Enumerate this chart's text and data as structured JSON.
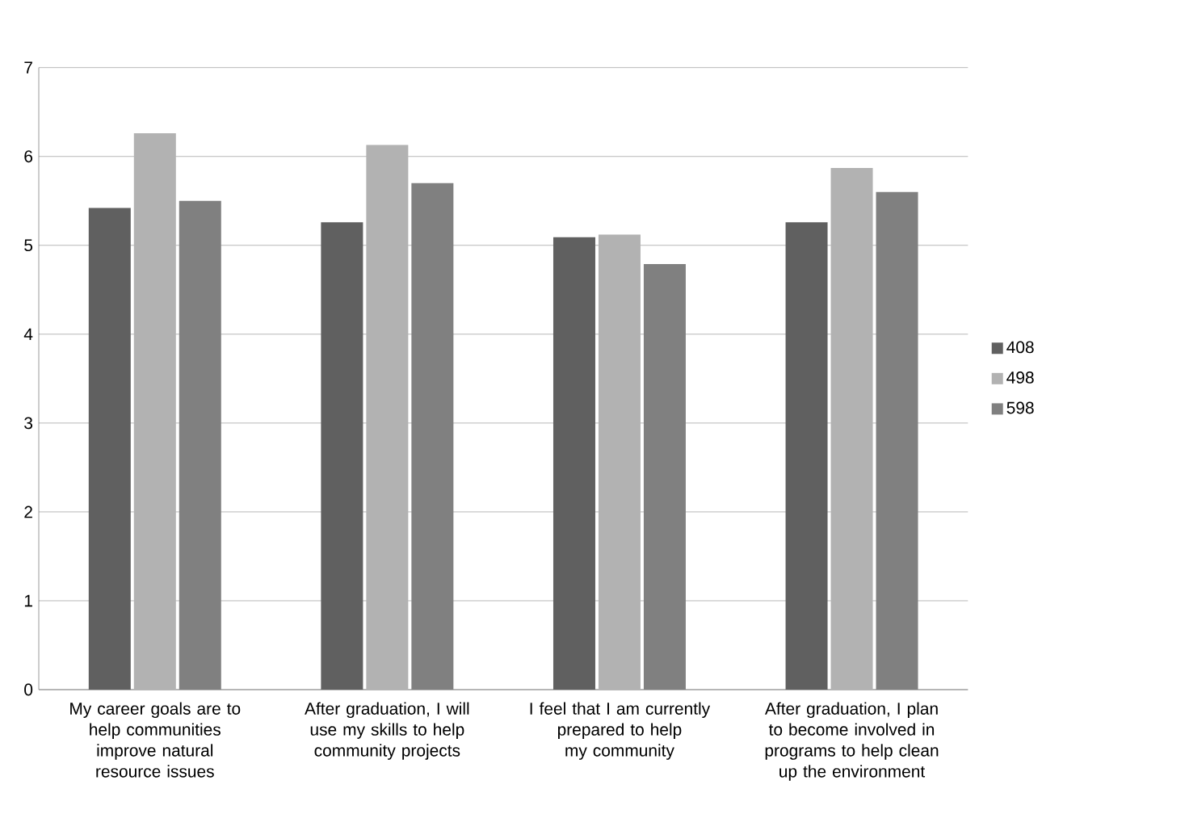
{
  "chart_data": {
    "type": "bar",
    "categories": [
      "My career goals are to help communities improve natural resource issues",
      "After graduation, I will use my skills to help community projects",
      "I feel that I am currently prepared to help my community",
      "After graduation, I plan to become involved in programs to help clean up the environment"
    ],
    "series": [
      {
        "name": "408",
        "color": "#606060",
        "values": [
          5.42,
          5.26,
          5.09,
          5.26
        ]
      },
      {
        "name": "498",
        "color": "#b2b2b2",
        "values": [
          6.26,
          6.13,
          5.12,
          5.87
        ]
      },
      {
        "name": "598",
        "color": "#808080",
        "values": [
          5.5,
          5.7,
          4.79,
          5.6
        ]
      }
    ],
    "ylim": [
      0,
      7
    ],
    "yticks": [
      0,
      1,
      2,
      3,
      4,
      5,
      6,
      7
    ],
    "grid": "y",
    "legend": "right"
  }
}
